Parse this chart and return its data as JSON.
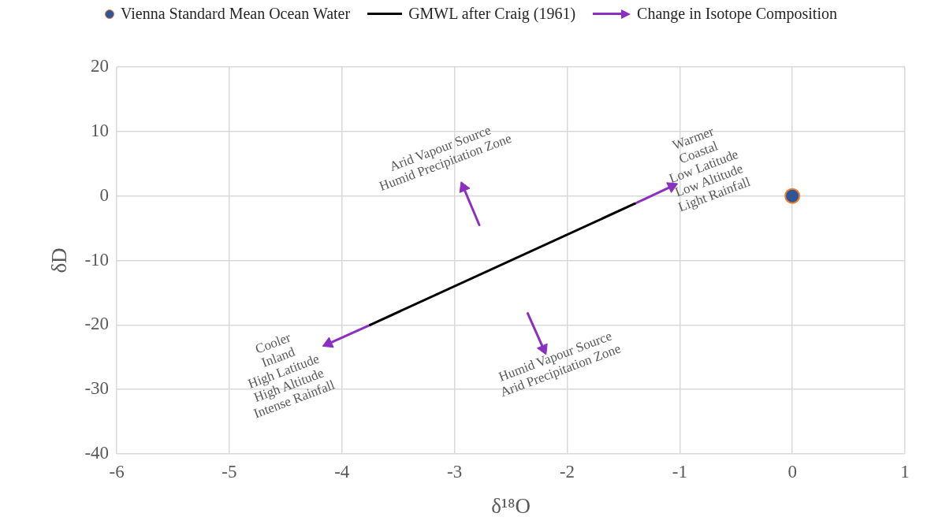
{
  "chart_data": {
    "type": "scatter",
    "xlabel": "δ¹⁸O",
    "ylabel": "δD",
    "xlim": [
      -6,
      1
    ],
    "xticks": [
      -6,
      -5,
      -4,
      -3,
      -2,
      -1,
      0,
      1
    ],
    "ylim": [
      -40,
      20
    ],
    "yticks": [
      -40,
      -30,
      -20,
      -10,
      0,
      10,
      20
    ],
    "grid": true,
    "legend": "top",
    "series": [
      {
        "name": "Vienna Standard Mean Ocean Water",
        "color": "#2f5597",
        "marker": "circle",
        "x": [
          0
        ],
        "values": [
          0
        ]
      },
      {
        "name": "GMWL after Craig (1961)",
        "type": "line",
        "color": "#000000",
        "x": [
          -3.75,
          -1.4
        ],
        "values": [
          -20,
          -1.2
        ]
      },
      {
        "name": "Change in Isotope Composition",
        "type": "line",
        "color": "#8b2fc0",
        "marker": "triangle",
        "x": [
          -1.4,
          -1.07,
          null,
          -3.75,
          -4.12,
          null,
          -2.78,
          -2.92,
          null,
          -2.35,
          -2.21
        ],
        "values": [
          -1.2,
          1.5,
          null,
          -20,
          -22.9,
          null,
          -4.5,
          1.3,
          null,
          -18.2,
          -23.7
        ]
      }
    ],
    "annotations": [
      "Arid Vapour Source\nHumid Precipitation Zone",
      "Warmer\nCoastal\nLow Latitude\nLow Altitude\nLight Rainfall",
      "Cooler\nInland\nHigh Latitude\nHigh Altitude\nIntense Rainfall",
      "Humid Vapour Source\nArid Precipitation Zone"
    ]
  }
}
